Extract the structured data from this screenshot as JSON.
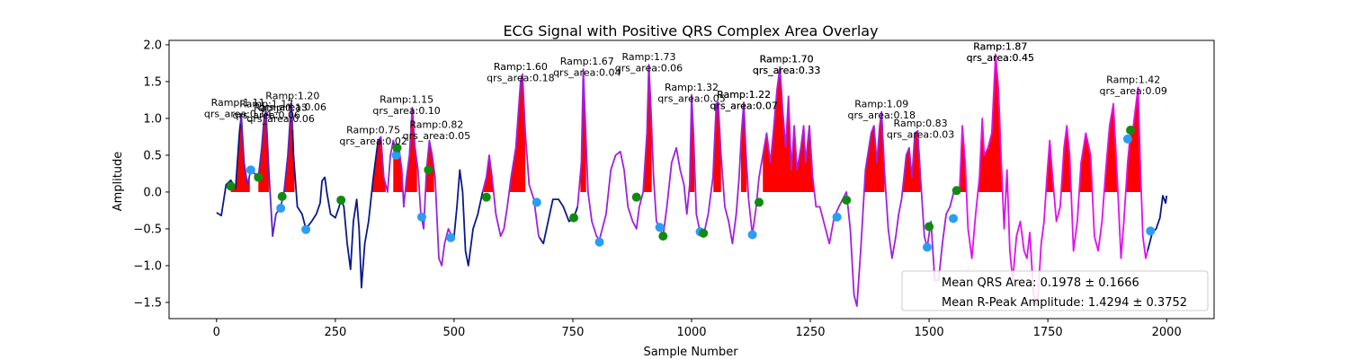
{
  "chart_data": {
    "type": "line",
    "title": "ECG Signal with Positive QRS Complex Area Overlay",
    "xlabel": "Sample Number",
    "ylabel": "Amplitude",
    "xlim": [
      -100,
      2100
    ],
    "ylim": [
      -1.72,
      2.06
    ],
    "xticks": [
      0,
      250,
      500,
      750,
      1000,
      1250,
      1500,
      1750,
      2000
    ],
    "yticks": [
      -1.5,
      -1.0,
      -0.5,
      0.0,
      0.5,
      1.0,
      1.5,
      2.0
    ],
    "signal_keypoints": [
      [
        0,
        -0.28
      ],
      [
        10,
        -0.32
      ],
      [
        20,
        0.1
      ],
      [
        30,
        0.16
      ],
      [
        40,
        0.05
      ],
      [
        48,
        0.8
      ],
      [
        52,
        1.05
      ],
      [
        58,
        0.4
      ],
      [
        65,
        0.1
      ],
      [
        72,
        0.3
      ],
      [
        80,
        0.25
      ],
      [
        88,
        0.2
      ],
      [
        95,
        0.6
      ],
      [
        100,
        1.0
      ],
      [
        104,
        1.1
      ],
      [
        110,
        0.3
      ],
      [
        118,
        -0.6
      ],
      [
        125,
        -0.3
      ],
      [
        135,
        -0.2
      ],
      [
        142,
        0.0
      ],
      [
        150,
        0.5
      ],
      [
        155,
        1.0
      ],
      [
        158,
        1.2
      ],
      [
        162,
        0.5
      ],
      [
        170,
        -0.2
      ],
      [
        180,
        -0.3
      ],
      [
        188,
        -0.5
      ],
      [
        200,
        -0.4
      ],
      [
        210,
        -0.3
      ],
      [
        218,
        -0.15
      ],
      [
        222,
        0.15
      ],
      [
        228,
        0.2
      ],
      [
        232,
        0.0
      ],
      [
        240,
        -0.3
      ],
      [
        250,
        -0.35
      ],
      [
        258,
        -0.2
      ],
      [
        262,
        -0.1
      ],
      [
        268,
        -0.2
      ],
      [
        275,
        -0.7
      ],
      [
        282,
        -1.05
      ],
      [
        288,
        -0.4
      ],
      [
        295,
        -0.1
      ],
      [
        300,
        -0.5
      ],
      [
        305,
        -1.3
      ],
      [
        312,
        -0.7
      ],
      [
        320,
        -0.4
      ],
      [
        330,
        0.2
      ],
      [
        340,
        0.7
      ],
      [
        346,
        0.75
      ],
      [
        352,
        0.2
      ],
      [
        360,
        0.0
      ],
      [
        366,
        0.5
      ],
      [
        372,
        0.7
      ],
      [
        378,
        0.55
      ],
      [
        384,
        0.6
      ],
      [
        390,
        0.3
      ],
      [
        394,
        -0.2
      ],
      [
        400,
        0.2
      ],
      [
        406,
        0.5
      ],
      [
        412,
        1.15
      ],
      [
        418,
        0.6
      ],
      [
        424,
        0.3
      ],
      [
        430,
        -0.3
      ],
      [
        436,
        -0.5
      ],
      [
        442,
        0.3
      ],
      [
        448,
        0.7
      ],
      [
        454,
        0.5
      ],
      [
        460,
        0.2
      ],
      [
        468,
        -0.9
      ],
      [
        474,
        -1.0
      ],
      [
        480,
        -0.7
      ],
      [
        488,
        -0.5
      ],
      [
        495,
        -0.6
      ],
      [
        500,
        -0.6
      ],
      [
        506,
        -0.2
      ],
      [
        512,
        0.3
      ],
      [
        518,
        0.0
      ],
      [
        524,
        -0.8
      ],
      [
        530,
        -1.0
      ],
      [
        540,
        -0.5
      ],
      [
        550,
        -0.3
      ],
      [
        560,
        0.0
      ],
      [
        568,
        0.2
      ],
      [
        574,
        0.5
      ],
      [
        580,
        0.2
      ],
      [
        588,
        -0.3
      ],
      [
        598,
        -0.6
      ],
      [
        605,
        -0.5
      ],
      [
        612,
        -0.2
      ],
      [
        620,
        0.2
      ],
      [
        630,
        0.6
      ],
      [
        640,
        1.5
      ],
      [
        644,
        1.6
      ],
      [
        650,
        0.8
      ],
      [
        658,
        0.1
      ],
      [
        668,
        -0.1
      ],
      [
        678,
        -0.6
      ],
      [
        688,
        -0.7
      ],
      [
        698,
        -0.4
      ],
      [
        708,
        -0.1
      ],
      [
        720,
        -0.1
      ],
      [
        730,
        -0.2
      ],
      [
        742,
        -0.4
      ],
      [
        752,
        -0.35
      ],
      [
        760,
        -0.2
      ],
      [
        768,
        0.4
      ],
      [
        772,
        1.67
      ],
      [
        776,
        1.0
      ],
      [
        782,
        0.0
      ],
      [
        790,
        -0.4
      ],
      [
        800,
        -0.6
      ],
      [
        806,
        -0.65
      ],
      [
        812,
        -0.5
      ],
      [
        820,
        -0.3
      ],
      [
        830,
        0.3
      ],
      [
        840,
        0.5
      ],
      [
        850,
        0.55
      ],
      [
        858,
        0.3
      ],
      [
        866,
        -0.2
      ],
      [
        876,
        -0.4
      ],
      [
        884,
        -0.5
      ],
      [
        890,
        -0.2
      ],
      [
        898,
        0.0
      ],
      [
        906,
        0.8
      ],
      [
        910,
        1.73
      ],
      [
        914,
        1.2
      ],
      [
        920,
        0.2
      ],
      [
        926,
        -0.4
      ],
      [
        933,
        -0.48
      ],
      [
        940,
        -0.6
      ],
      [
        948,
        -0.2
      ],
      [
        958,
        0.4
      ],
      [
        968,
        0.6
      ],
      [
        976,
        0.3
      ],
      [
        984,
        0.1
      ],
      [
        990,
        -0.3
      ],
      [
        996,
        0.1
      ],
      [
        1000,
        1.32
      ],
      [
        1004,
        0.8
      ],
      [
        1010,
        -0.3
      ],
      [
        1018,
        -0.55
      ],
      [
        1025,
        -0.6
      ],
      [
        1035,
        -0.3
      ],
      [
        1045,
        0.2
      ],
      [
        1052,
        1.2
      ],
      [
        1056,
        1.22
      ],
      [
        1062,
        0.5
      ],
      [
        1070,
        -0.2
      ],
      [
        1078,
        -0.4
      ],
      [
        1086,
        -0.7
      ],
      [
        1094,
        -0.3
      ],
      [
        1100,
        0.2
      ],
      [
        1105,
        0.8
      ],
      [
        1110,
        1.22
      ],
      [
        1114,
        0.6
      ],
      [
        1120,
        -0.1
      ],
      [
        1128,
        -0.58
      ],
      [
        1136,
        -0.2
      ],
      [
        1142,
        0.2
      ],
      [
        1150,
        0.5
      ],
      [
        1158,
        0.8
      ],
      [
        1166,
        0.4
      ],
      [
        1172,
        0.8
      ],
      [
        1180,
        1.4
      ],
      [
        1186,
        1.7
      ],
      [
        1192,
        1.1
      ],
      [
        1198,
        0.6
      ],
      [
        1204,
        1.3
      ],
      [
        1210,
        0.3
      ],
      [
        1216,
        0.9
      ],
      [
        1222,
        0.3
      ],
      [
        1230,
        0.6
      ],
      [
        1236,
        0.9
      ],
      [
        1240,
        0.4
      ],
      [
        1248,
        0.9
      ],
      [
        1255,
        0.2
      ],
      [
        1262,
        -0.2
      ],
      [
        1270,
        -0.2
      ],
      [
        1280,
        -0.45
      ],
      [
        1290,
        -0.7
      ],
      [
        1300,
        -0.35
      ],
      [
        1310,
        -0.2
      ],
      [
        1318,
        -0.1
      ],
      [
        1326,
        0.0
      ],
      [
        1334,
        -0.5
      ],
      [
        1342,
        -1.4
      ],
      [
        1348,
        -1.55
      ],
      [
        1356,
        -0.8
      ],
      [
        1366,
        0.3
      ],
      [
        1378,
        0.8
      ],
      [
        1384,
        0.9
      ],
      [
        1390,
        0.4
      ],
      [
        1396,
        0.9
      ],
      [
        1400,
        1.09
      ],
      [
        1406,
        0.3
      ],
      [
        1414,
        -0.5
      ],
      [
        1422,
        -0.9
      ],
      [
        1430,
        -0.6
      ],
      [
        1436,
        -0.3
      ],
      [
        1442,
        -0.1
      ],
      [
        1452,
        0.5
      ],
      [
        1458,
        0.6
      ],
      [
        1464,
        0.2
      ],
      [
        1470,
        0.8
      ],
      [
        1476,
        0.83
      ],
      [
        1482,
        0.2
      ],
      [
        1490,
        -0.6
      ],
      [
        1496,
        -0.75
      ],
      [
        1504,
        -0.4
      ],
      [
        1512,
        -1.2
      ],
      [
        1520,
        -1.2
      ],
      [
        1528,
        -0.7
      ],
      [
        1536,
        -0.3
      ],
      [
        1544,
        -0.2
      ],
      [
        1552,
        0.0
      ],
      [
        1558,
        0.02
      ],
      [
        1564,
        0.0
      ],
      [
        1570,
        0.9
      ],
      [
        1576,
        0.4
      ],
      [
        1582,
        -0.5
      ],
      [
        1590,
        -0.9
      ],
      [
        1598,
        -0.3
      ],
      [
        1606,
        0.2
      ],
      [
        1612,
        1.0
      ],
      [
        1616,
        0.5
      ],
      [
        1624,
        0.6
      ],
      [
        1632,
        0.8
      ],
      [
        1640,
        1.87
      ],
      [
        1646,
        1.4
      ],
      [
        1652,
        0.4
      ],
      [
        1658,
        -0.5
      ],
      [
        1664,
        0.3
      ],
      [
        1670,
        -0.8
      ],
      [
        1676,
        -1.2
      ],
      [
        1684,
        -0.6
      ],
      [
        1692,
        -0.4
      ],
      [
        1700,
        -0.8
      ],
      [
        1706,
        -0.9
      ],
      [
        1712,
        -0.55
      ],
      [
        1720,
        -1.4
      ],
      [
        1728,
        -1.55
      ],
      [
        1736,
        -0.7
      ],
      [
        1742,
        -0.4
      ],
      [
        1748,
        0.2
      ],
      [
        1754,
        0.7
      ],
      [
        1760,
        0.2
      ],
      [
        1768,
        -0.4
      ],
      [
        1776,
        -0.2
      ],
      [
        1784,
        0.6
      ],
      [
        1790,
        0.9
      ],
      [
        1796,
        0.5
      ],
      [
        1804,
        -0.8
      ],
      [
        1812,
        -0.4
      ],
      [
        1820,
        0.4
      ],
      [
        1830,
        0.8
      ],
      [
        1840,
        0.5
      ],
      [
        1848,
        -0.6
      ],
      [
        1856,
        -0.8
      ],
      [
        1864,
        -0.4
      ],
      [
        1872,
        0.3
      ],
      [
        1880,
        0.9
      ],
      [
        1888,
        1.2
      ],
      [
        1896,
        0.2
      ],
      [
        1904,
        -0.9
      ],
      [
        1910,
        -0.4
      ],
      [
        1918,
        0.4
      ],
      [
        1924,
        0.8
      ],
      [
        1930,
        0.9
      ],
      [
        1940,
        1.42
      ],
      [
        1944,
        0.5
      ],
      [
        1950,
        -0.6
      ],
      [
        1956,
        -0.9
      ],
      [
        1962,
        -0.75
      ],
      [
        1970,
        -0.55
      ],
      [
        1978,
        -0.5
      ],
      [
        1986,
        -0.35
      ],
      [
        1992,
        -0.05
      ],
      [
        1998,
        -0.15
      ],
      [
        2000,
        -0.05
      ]
    ],
    "color_segments": [
      {
        "from": 0,
        "to": 50,
        "color": "#0a1a8a"
      },
      {
        "from": 50,
        "to": 160,
        "color": "#5a25c8"
      },
      {
        "from": 160,
        "to": 340,
        "color": "#0a1a8a"
      },
      {
        "from": 340,
        "to": 500,
        "color": "#9a24d8"
      },
      {
        "from": 500,
        "to": 560,
        "color": "#0a1a8a"
      },
      {
        "from": 560,
        "to": 680,
        "color": "#a020e0"
      },
      {
        "from": 680,
        "to": 760,
        "color": "#0a1a8a"
      },
      {
        "from": 760,
        "to": 1120,
        "color": "#a020e0"
      },
      {
        "from": 1120,
        "to": 1300,
        "color": "#b01ee0"
      },
      {
        "from": 1300,
        "to": 1555,
        "color": "#a020e0"
      },
      {
        "from": 1555,
        "to": 1960,
        "color": "#e010f0"
      },
      {
        "from": 1960,
        "to": 2000,
        "color": "#0a1a8a"
      }
    ],
    "qrs_fill_ranges": [
      [
        30,
        70
      ],
      [
        88,
        110
      ],
      [
        138,
        164
      ],
      [
        270,
        356
      ],
      [
        372,
        422
      ],
      [
        438,
        458
      ],
      [
        552,
        650
      ],
      [
        766,
        778
      ],
      [
        898,
        916
      ],
      [
        990,
        1006
      ],
      [
        1046,
        1062
      ],
      [
        1104,
        1116
      ],
      [
        1150,
        1260
      ],
      [
        1340,
        1406
      ],
      [
        1416,
        1482
      ],
      [
        1560,
        1580
      ],
      [
        1596,
        1900
      ],
      [
        1910,
        1946
      ]
    ],
    "qrs_fill_color": "#ff0000",
    "blue_markers": [
      [
        72,
        0.3
      ],
      [
        135,
        -0.22
      ],
      [
        188,
        -0.51
      ],
      [
        378,
        0.5
      ],
      [
        432,
        -0.34
      ],
      [
        493,
        -0.62
      ],
      [
        674,
        -0.14
      ],
      [
        806,
        -0.68
      ],
      [
        933,
        -0.48
      ],
      [
        1018,
        -0.54
      ],
      [
        1128,
        -0.58
      ],
      [
        1306,
        -0.34
      ],
      [
        1496,
        -0.75
      ],
      [
        1551,
        -0.36
      ],
      [
        1918,
        0.72
      ],
      [
        1966,
        -0.53
      ]
    ],
    "green_markers": [
      [
        30,
        0.08
      ],
      [
        88,
        0.2
      ],
      [
        138,
        -0.06
      ],
      [
        262,
        -0.11
      ],
      [
        380,
        0.6
      ],
      [
        446,
        0.3
      ],
      [
        568,
        -0.07
      ],
      [
        752,
        -0.35
      ],
      [
        884,
        -0.07
      ],
      [
        940,
        -0.6
      ],
      [
        1025,
        -0.56
      ],
      [
        1142,
        -0.14
      ],
      [
        1326,
        -0.11
      ],
      [
        1500,
        -0.47
      ],
      [
        1558,
        0.02
      ],
      [
        1924,
        0.84
      ]
    ],
    "annotations": [
      {
        "x": 45,
        "y": 1.17,
        "lines": [
          "Ramp:1.11",
          "qrs_area:0.14"
        ],
        "bold": false
      },
      {
        "x": 105,
        "y": 1.15,
        "lines": [
          "Ramp:1.17",
          "qrs_area:0.06"
        ],
        "bold": false
      },
      {
        "x": 135,
        "y": 1.1,
        "lines": [
          "Ramp:1.13",
          "qrs_area:0.06"
        ],
        "bold": false
      },
      {
        "x": 160,
        "y": 1.26,
        "lines": [
          "Ramp:1.20",
          "qrs_area:0.06"
        ],
        "bold": false
      },
      {
        "x": 330,
        "y": 0.8,
        "lines": [
          "Ramp:0.75",
          "qrs_area:0.02"
        ],
        "bold": false
      },
      {
        "x": 400,
        "y": 1.21,
        "lines": [
          "Ramp:1.15",
          "qrs_area:0.10"
        ],
        "bold": false
      },
      {
        "x": 463,
        "y": 0.87,
        "lines": [
          "Ramp:0.82",
          "qrs_area:0.05"
        ],
        "bold": false
      },
      {
        "x": 640,
        "y": 1.66,
        "lines": [
          "Ramp:1.60",
          "qrs_area:0.18"
        ],
        "bold": false
      },
      {
        "x": 780,
        "y": 1.73,
        "lines": [
          "Ramp:1.67",
          "qrs_area:0.04"
        ],
        "bold": false
      },
      {
        "x": 910,
        "y": 1.79,
        "lines": [
          "Ramp:1.73",
          "qrs_area:0.06"
        ],
        "bold": false
      },
      {
        "x": 1000,
        "y": 1.38,
        "lines": [
          "Ramp:1.32",
          "qrs_area:0.05"
        ],
        "bold": false
      },
      {
        "x": 1110,
        "y": 1.28,
        "lines": [
          "Ramp:1.22",
          "qrs_area:0.07"
        ],
        "bold": false
      },
      {
        "x": 1110,
        "y": 1.28,
        "lines": [
          "Ramp:1.22",
          "qrs_area:0.07"
        ],
        "bold": false
      },
      {
        "x": 1200,
        "y": 1.76,
        "lines": [
          "Ramp:1.70",
          "qrs_area:0.33"
        ],
        "bold": false
      },
      {
        "x": 1200,
        "y": 1.76,
        "lines": [
          "Ramp:1.70",
          "qrs_area:0.33"
        ],
        "bold": false
      },
      {
        "x": 1400,
        "y": 1.15,
        "lines": [
          "Ramp:1.09",
          "qrs_area:0.18"
        ],
        "bold": false
      },
      {
        "x": 1482,
        "y": 0.89,
        "lines": [
          "Ramp:0.83",
          "qrs_area:0.03"
        ],
        "bold": false
      },
      {
        "x": 1650,
        "y": 1.93,
        "lines": [
          "Ramp:1.87",
          "qrs_area:0.45"
        ],
        "bold": false
      },
      {
        "x": 1650,
        "y": 1.93,
        "lines": [
          "Ramp:1.87",
          "qrs_area:0.45"
        ],
        "bold": false
      },
      {
        "x": 1930,
        "y": 1.48,
        "lines": [
          "Ramp:1.42",
          "qrs_area:0.09"
        ],
        "bold": false
      }
    ],
    "legend": {
      "position": "bottom-right",
      "entries": [
        "Mean QRS Area: 0.1978 ± 0.1666",
        "Mean R-Peak Amplitude: 1.4294 ± 0.3752"
      ]
    }
  }
}
